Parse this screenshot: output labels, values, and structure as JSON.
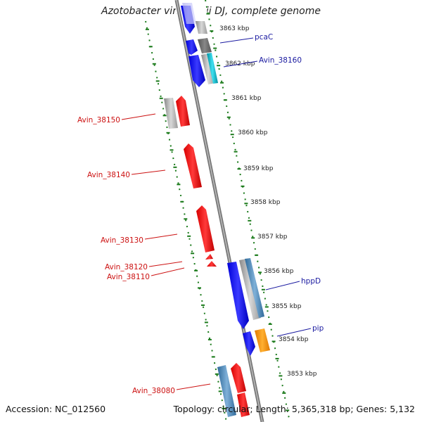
{
  "title": "Azotobacter vinelandii DJ, complete genome",
  "accession": "Accession: NC_012560",
  "topology": "Topology: circular; Length: 5,365,318 bp; Genes: 5,132",
  "colors": {
    "backbone": "#888888",
    "forward_blue": "#0a0aee",
    "reverse_red": "#ee0a0a",
    "tick_green": "#1a7a1a",
    "label_blue": "#1a1aa0",
    "label_red": "#cc1111",
    "orange": "#ff9900",
    "cyan": "#00b8c8",
    "steel": "#4682b4",
    "gray": "#a0a0a0"
  },
  "kbp_marks": [
    {
      "label": "3863 kbp"
    },
    {
      "label": "3862 kbp"
    },
    {
      "label": "3861 kbp"
    },
    {
      "label": "3860 kbp"
    },
    {
      "label": "3859 kbp"
    },
    {
      "label": "3858 kbp"
    },
    {
      "label": "3857 kbp"
    },
    {
      "label": "3856 kbp"
    },
    {
      "label": "3855 kbp"
    },
    {
      "label": "3854 kbp"
    },
    {
      "label": "3853 kbp"
    }
  ],
  "gene_labels_right": [
    {
      "name": "pcaC"
    },
    {
      "name": "Avin_38160"
    },
    {
      "name": "hppD"
    },
    {
      "name": "pip"
    }
  ],
  "gene_labels_left": [
    {
      "name": "Avin_38150"
    },
    {
      "name": "Avin_38140"
    },
    {
      "name": "Avin_38130"
    },
    {
      "name": "Avin_38120"
    },
    {
      "name": "Avin_38110"
    },
    {
      "name": "Avin_38080"
    }
  ]
}
